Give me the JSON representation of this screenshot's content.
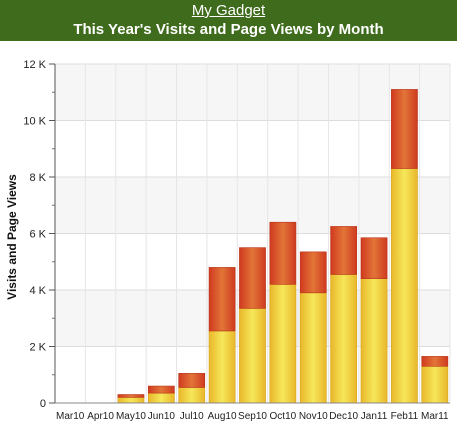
{
  "header": {
    "link_text": "My Gadget",
    "title": "This Year's Visits and Page Views by Month",
    "background": "#3f6b1c"
  },
  "chart_data": {
    "type": "bar",
    "stacked": true,
    "title": "This Year's Visits and Page Views by Month",
    "xlabel": "",
    "ylabel": "Visits and Page Views",
    "ylim": [
      0,
      12000
    ],
    "yticks": [
      0,
      2000,
      4000,
      6000,
      8000,
      10000,
      12000
    ],
    "ytick_labels": [
      "0",
      "2 K",
      "4 K",
      "6 K",
      "8 K",
      "10 K",
      "12 K"
    ],
    "grid": true,
    "categories": [
      "Mar10",
      "Apr10",
      "May10",
      "Jun10",
      "Jul10",
      "Aug10",
      "Sep10",
      "Oct10",
      "Nov10",
      "Dec10",
      "Jan11",
      "Feb11",
      "Mar11"
    ],
    "series": [
      {
        "color": "#f2d23a",
        "values": [
          0,
          0,
          200,
          350,
          550,
          2550,
          3350,
          4200,
          3900,
          4550,
          4400,
          8300,
          1300
        ]
      },
      {
        "color": "#d9472a",
        "values": [
          0,
          0,
          100,
          250,
          500,
          2250,
          2150,
          2200,
          1450,
          1700,
          1450,
          2800,
          350
        ]
      }
    ]
  }
}
